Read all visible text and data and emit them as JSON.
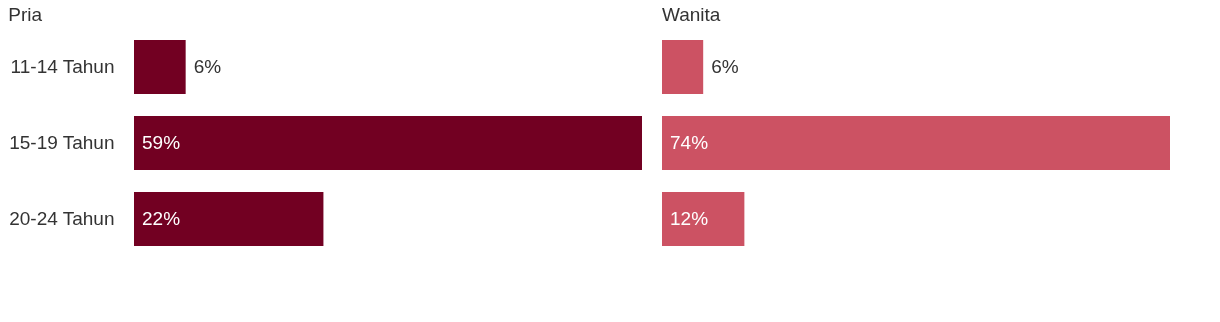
{
  "chart_data": [
    {
      "type": "bar",
      "orientation": "horizontal",
      "title": "Pria",
      "categories": [
        "11-14 Tahun",
        "15-19 Tahun",
        "20-24 Tahun"
      ],
      "values": [
        6,
        59,
        22
      ],
      "value_labels": [
        "6%",
        "59%",
        "22%"
      ],
      "color": "#720022",
      "tick_labels": "y"
    },
    {
      "type": "bar",
      "orientation": "horizontal",
      "title": "Wanita",
      "categories": [
        null,
        null,
        null
      ],
      "values": [
        6,
        74,
        12
      ],
      "value_labels": [
        "6%",
        "74%",
        "12%"
      ],
      "color": "#cc5263",
      "tick_labels": false
    }
  ]
}
